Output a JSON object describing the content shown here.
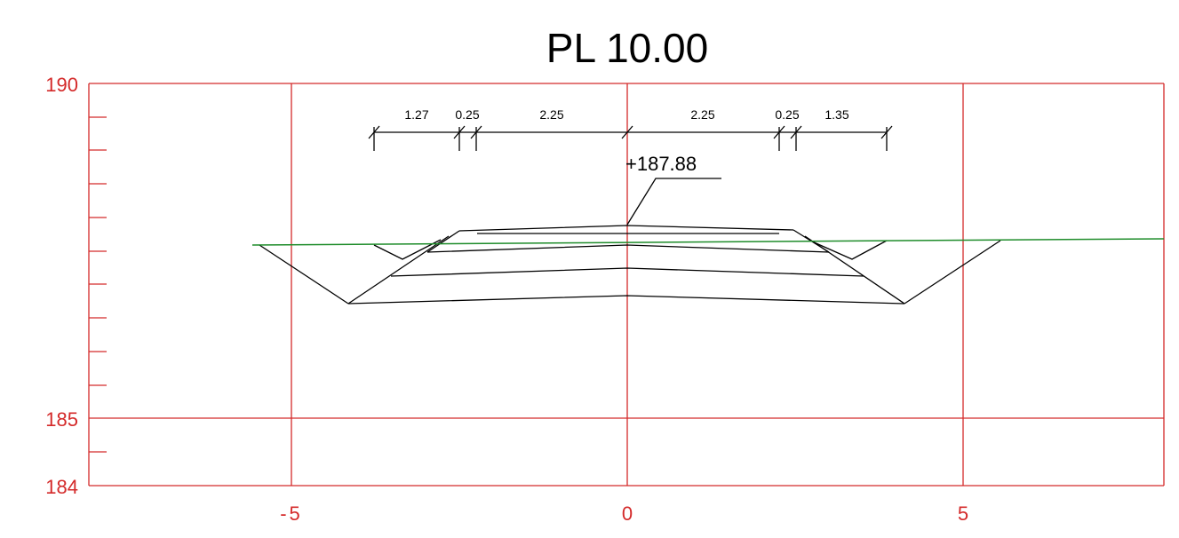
{
  "title": "PL 10.00",
  "y_axis": {
    "labels": [
      "190",
      "185",
      "184"
    ]
  },
  "x_axis": {
    "labels": [
      "-5",
      "0",
      "5"
    ]
  },
  "elevation_label": "+187.88",
  "dimensions_left": [
    "1.27",
    "0.25",
    "2.25"
  ],
  "dimensions_right": [
    "2.25",
    "0.25",
    "1.35"
  ],
  "colors": {
    "grid": "#d42a2a",
    "section": "#000000",
    "terrain": "#1e8c2a"
  }
}
